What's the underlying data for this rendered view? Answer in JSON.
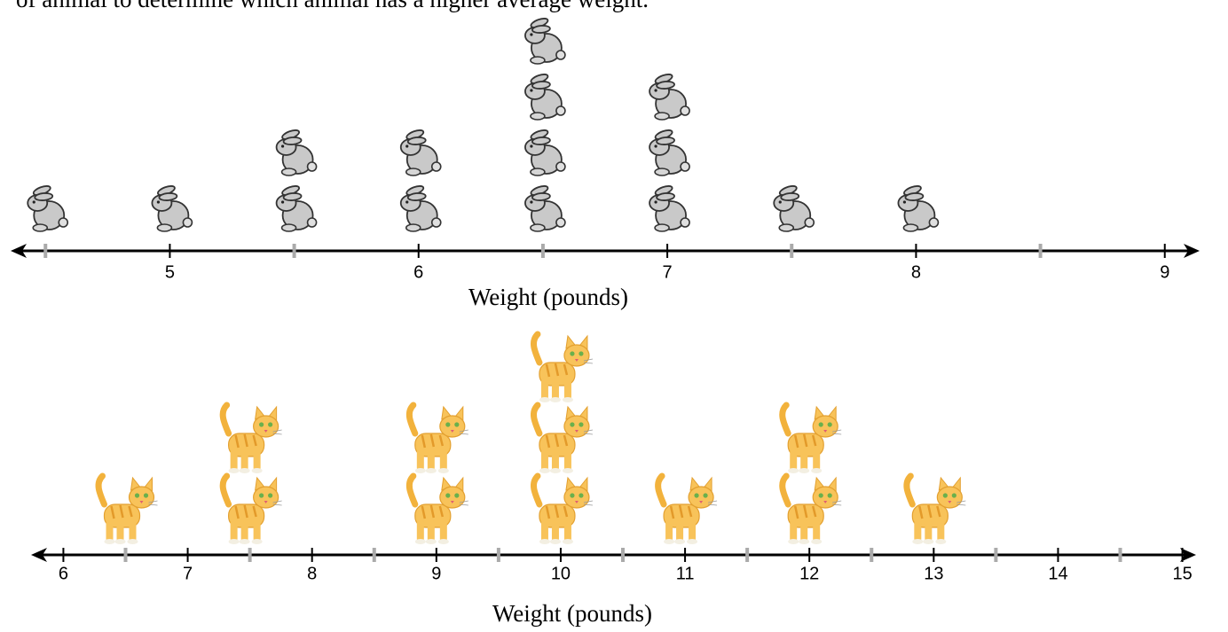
{
  "intro_text": "of animal to determine which animal has a higher average weight.",
  "chart_data": [
    {
      "type": "dot",
      "icon": "rabbit",
      "x_label": "Weight (pounds)",
      "x": [
        4.5,
        5,
        5.5,
        6,
        6.5,
        7,
        7.5,
        8
      ],
      "values": [
        1,
        1,
        2,
        2,
        4,
        3,
        1,
        1
      ],
      "xlim": [
        4.36,
        9.14
      ],
      "xticks": [
        5,
        6,
        7,
        8,
        9
      ],
      "minor_xticks": [
        4.5,
        5.5,
        6.5,
        7.5,
        8.5
      ]
    },
    {
      "type": "dot",
      "icon": "cat",
      "x_label": "Weight (pounds)",
      "x": [
        6.5,
        7.5,
        9,
        10,
        11,
        12,
        13
      ],
      "values": [
        1,
        2,
        2,
        3,
        1,
        2,
        1
      ],
      "xlim": [
        5.74,
        15.11
      ],
      "xticks": [
        6,
        7,
        8,
        9,
        10,
        11,
        12,
        13,
        14,
        15
      ],
      "minor_xticks": [
        6.5,
        7.5,
        8.5,
        9.5,
        10.5,
        11.5,
        12.5,
        13.5,
        14.5
      ]
    }
  ]
}
